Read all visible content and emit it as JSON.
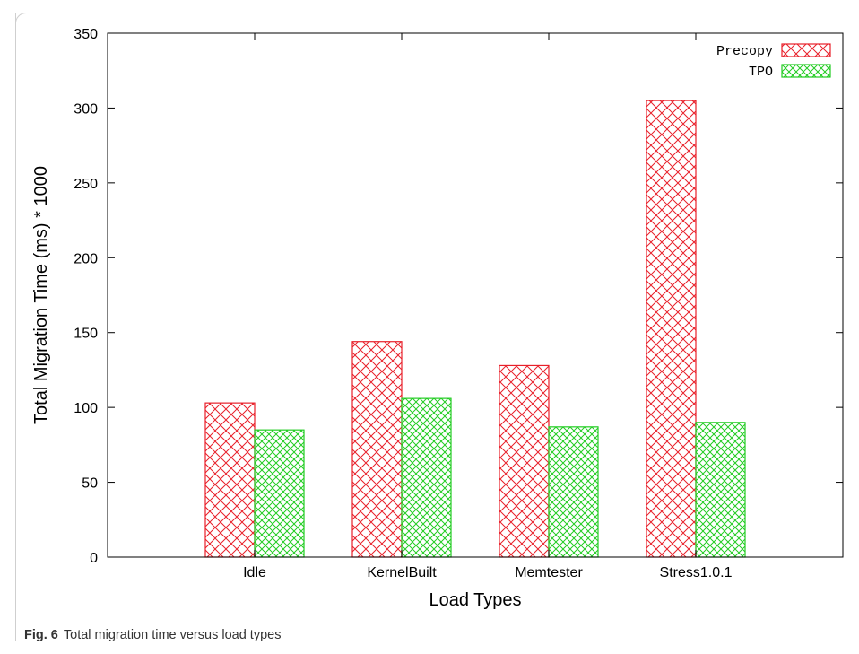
{
  "caption": {
    "label": "Fig. 6",
    "text": "Total migration time versus load types"
  },
  "colors": {
    "precopy": "#e8202a",
    "tpo": "#22cc22",
    "axis": "#000000"
  },
  "chart_data": {
    "type": "bar",
    "categories": [
      "Idle",
      "KernelBuilt",
      "Memtester",
      "Stress1.0.1"
    ],
    "series": [
      {
        "name": "Precopy",
        "values": [
          103,
          144,
          128,
          305
        ]
      },
      {
        "name": "TPO",
        "values": [
          85,
          106,
          87,
          90
        ]
      }
    ],
    "xlabel": "Load Types",
    "ylabel": "Total Migration Time (ms) * 1000",
    "ylim": [
      0,
      350
    ],
    "yticks": [
      0,
      50,
      100,
      150,
      200,
      250,
      300,
      350
    ],
    "legend_position": "top-right",
    "grid": false,
    "pattern": "crosshatch"
  }
}
